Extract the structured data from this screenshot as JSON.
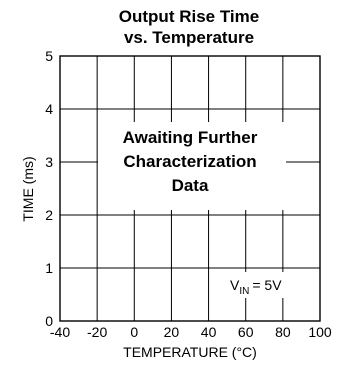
{
  "chart_data": {
    "type": "line",
    "title": [
      "Output Rise Time",
      "vs. Temperature"
    ],
    "xlabel": "TEMPERATURE (°C)",
    "ylabel": "TIME (ms)",
    "xlim": [
      -40,
      100
    ],
    "ylim": [
      0,
      5
    ],
    "x_ticks": [
      -40,
      -20,
      0,
      20,
      40,
      60,
      80,
      100
    ],
    "y_ticks": [
      0,
      1,
      2,
      3,
      4,
      5
    ],
    "grid": true,
    "series": [],
    "annotation": [
      "Awaiting Further",
      "Characterization",
      "Data"
    ],
    "condition": {
      "symbol": "V",
      "subscript": "IN",
      "value": "= 5V"
    }
  }
}
